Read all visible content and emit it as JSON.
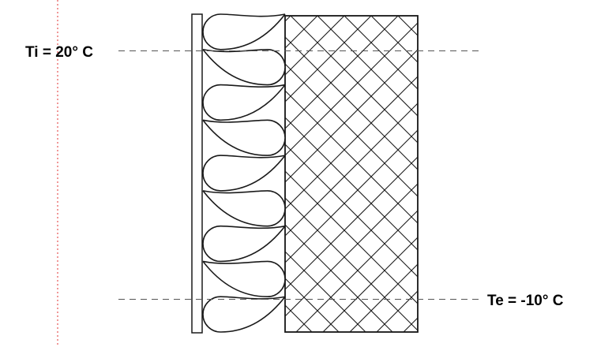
{
  "labels": {
    "interior_temperature": "Ti = 20° C",
    "exterior_temperature": "Te = -10° C"
  },
  "colors": {
    "stroke": "#1a1a1a",
    "guide_line": "#555555",
    "margin_line": "#e03030",
    "background": "#ffffff"
  },
  "layers": [
    {
      "name": "interior-finish-board",
      "pattern": "plain"
    },
    {
      "name": "insulation-layer",
      "pattern": "insulation-loops",
      "loop_count": 9
    },
    {
      "name": "masonry-wall",
      "pattern": "diagonal-crosshatch"
    }
  ]
}
